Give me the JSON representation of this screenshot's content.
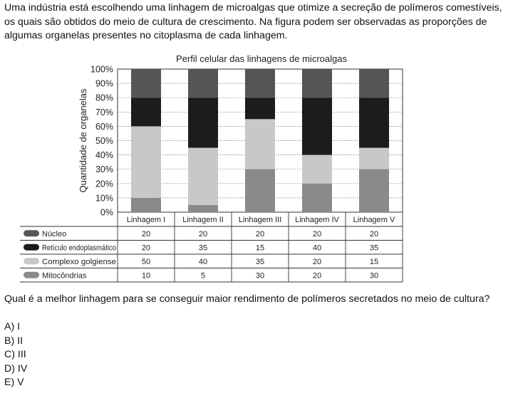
{
  "intro_text": "Uma indústria está escolhendo uma linhagem de microalgas que otimize a secreção de polímeros comestíveis, os quais são obtidos do meio de cultura de crescimento. Na figura podem ser observadas as proporções de algumas organelas presentes no citoplasma de cada linhagem.",
  "chart_data": {
    "type": "bar",
    "stacked": true,
    "title": "Perfil celular das linhagens de microalgas",
    "ylabel": "Quantidade de organelas",
    "xlabel": "",
    "ylim": [
      0,
      100
    ],
    "yticks": [
      "0%",
      "10%",
      "20%",
      "30%",
      "40%",
      "50%",
      "60%",
      "70%",
      "80%",
      "90%",
      "100%"
    ],
    "categories": [
      "Linhagem I",
      "Linhagem II",
      "Linhagem III",
      "Linhagem IV",
      "Linhagem V"
    ],
    "grid": true,
    "legend_placement": "table-below",
    "series": [
      {
        "name": "Mitocôndrias",
        "color": "#8a8a8a",
        "values": [
          10,
          5,
          30,
          20,
          30
        ]
      },
      {
        "name": "Complexo golgiense",
        "color": "#c8c8c8",
        "values": [
          50,
          40,
          35,
          20,
          15
        ]
      },
      {
        "name": "Retículo endoplasmático",
        "color": "#1c1c1c",
        "values": [
          20,
          35,
          15,
          40,
          35
        ]
      },
      {
        "name": "Núcleo",
        "color": "#555555",
        "values": [
          20,
          20,
          20,
          20,
          20
        ]
      }
    ],
    "table_row_order": [
      "Núcleo",
      "Retículo endoplasmático",
      "Complexo golgiense",
      "Mitocôndrias"
    ]
  },
  "question": "Qual é a melhor linhagem para se conseguir maior rendimento de polímeros secretados no meio de cultura?",
  "options": [
    "A) I",
    "B) II",
    "C) III",
    "D) IV",
    "E) V"
  ]
}
